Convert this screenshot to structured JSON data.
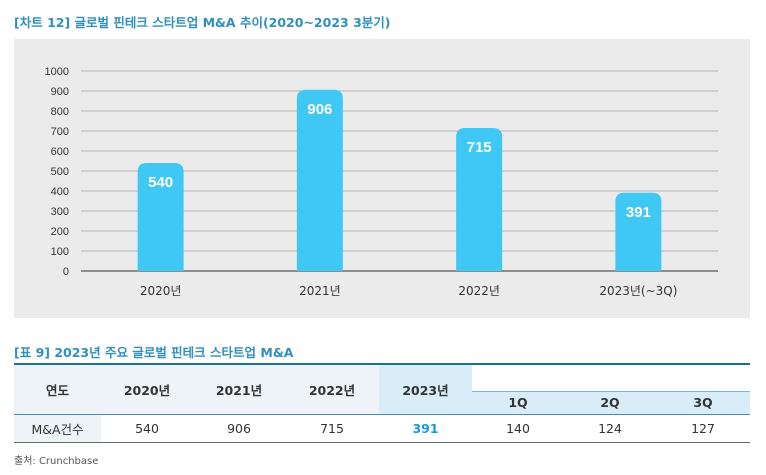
{
  "chart_title": "[차트 12] 글로벌 핀테크 스타트업 M&A 추이(2020~2023 3분기)",
  "chart_data": {
    "type": "bar",
    "title": "[차트 12] 글로벌 핀테크 스타트업 M&A 추이(2020~2023 3분기)",
    "categories": [
      "2020년",
      "2021년",
      "2022년",
      "2023년(~3Q)"
    ],
    "values": [
      540,
      906,
      715,
      391
    ],
    "ylim": [
      0,
      1000
    ],
    "yticks": [
      0,
      100,
      200,
      300,
      400,
      500,
      600,
      700,
      800,
      900,
      1000
    ],
    "xlabel": "",
    "ylabel": "",
    "grid": true,
    "bar_color": "#40c8f4",
    "label_color": "#ffffff"
  },
  "table": {
    "title": "[표 9] 2023년 주요 글로벌 핀테크 스타트업 M&A",
    "header_label": "연도",
    "years": [
      "2020년",
      "2021년",
      "2022년",
      "2023년"
    ],
    "quarters": [
      "1Q",
      "2Q",
      "3Q"
    ],
    "row_label": "M&A건수",
    "year_values": [
      "540",
      "906",
      "715",
      "391"
    ],
    "quarter_values": [
      "140",
      "124",
      "127"
    ]
  },
  "source": "출처: Crunchbase"
}
